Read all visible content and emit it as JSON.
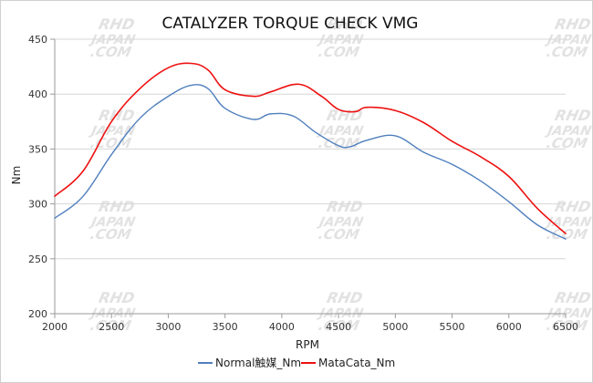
{
  "chart_data": {
    "type": "line",
    "title": "CATALYZER TORQUE CHECK VMG",
    "xlabel": "RPM",
    "ylabel": "Nm",
    "xlim": [
      2000,
      6500
    ],
    "ylim": [
      200,
      450
    ],
    "xticks": [
      2000,
      2500,
      3000,
      3500,
      4000,
      4500,
      5000,
      5500,
      6000,
      6500
    ],
    "yticks": [
      200,
      250,
      300,
      350,
      400,
      450
    ],
    "xtick_labels": [
      "2000",
      "2500",
      "3000",
      "3500",
      "4000",
      "4500",
      "5000",
      "5500",
      "6000",
      "6500"
    ],
    "ytick_labels": [
      "200",
      "250",
      "300",
      "350",
      "400",
      "450"
    ],
    "grid": "horizontal",
    "legend_position": "bottom",
    "series": [
      {
        "name": "Normal触媒_Nm",
        "color": "#4f7fbd",
        "x": [
          2000,
          2250,
          2500,
          2750,
          3000,
          3200,
          3350,
          3500,
          3750,
          3900,
          4100,
          4300,
          4500,
          4600,
          4750,
          5000,
          5250,
          5500,
          5750,
          6000,
          6250,
          6500
        ],
        "y": [
          287,
          307,
          345,
          378,
          398,
          408,
          405,
          387,
          377,
          382,
          380,
          365,
          353,
          352,
          358,
          362,
          347,
          336,
          321,
          302,
          281,
          268
        ]
      },
      {
        "name": "MataCata_Nm",
        "color": "#ee1111",
        "x": [
          2000,
          2250,
          2500,
          2750,
          3000,
          3200,
          3350,
          3500,
          3750,
          3900,
          4150,
          4350,
          4500,
          4650,
          4750,
          5000,
          5250,
          5500,
          5750,
          6000,
          6250,
          6500
        ],
        "y": [
          307,
          330,
          375,
          405,
          424,
          428,
          422,
          404,
          398,
          402,
          409,
          398,
          386,
          384,
          388,
          385,
          374,
          357,
          343,
          325,
          296,
          273
        ]
      }
    ]
  },
  "watermark": {
    "lines": [
      "RHD",
      "JAPAN",
      ".COM"
    ]
  }
}
